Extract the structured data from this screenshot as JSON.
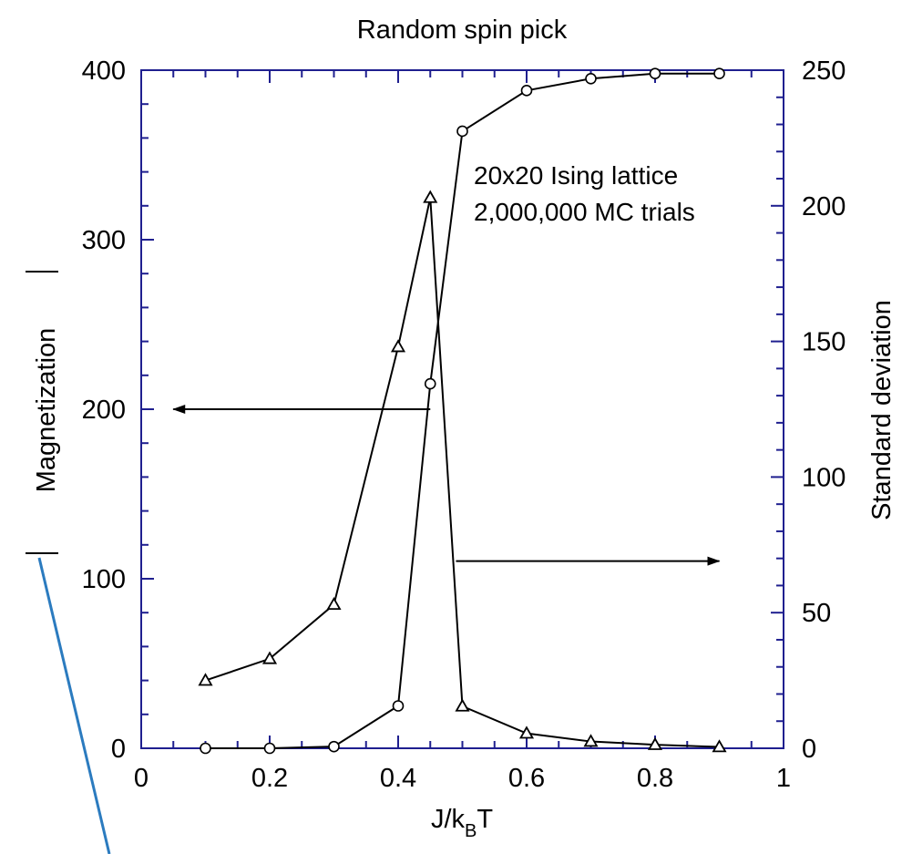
{
  "colors": {
    "frame": "#1f1f8f",
    "data": "#000000",
    "stray_line": "#2b7bbf"
  },
  "chart_data": {
    "type": "line",
    "title": "Random spin pick",
    "xlabel": "J/k",
    "xlabel_sub": "B",
    "xlabel_tail": "T",
    "ylabel_left": "Magnetization",
    "ylabel_right": "Standard deviation",
    "xlim": [
      0,
      1
    ],
    "ylim_left": [
      0,
      400
    ],
    "ylim_right": [
      0,
      250
    ],
    "x_ticks": [
      "0",
      "0.2",
      "0.4",
      "0.6",
      "0.8",
      "1"
    ],
    "y_left_ticks": [
      "0",
      "100",
      "200",
      "300",
      "400"
    ],
    "y_right_ticks": [
      "0",
      "50",
      "100",
      "150",
      "200",
      "250"
    ],
    "grid": false,
    "annotation_lines": [
      "20x20 Ising lattice",
      "2,000,000 MC trials"
    ],
    "series": [
      {
        "axis": "left",
        "marker": "circle",
        "x": [
          0.1,
          0.2,
          0.3,
          0.4,
          0.45,
          0.5,
          0.6,
          0.7,
          0.8,
          0.9
        ],
        "values": [
          0,
          0,
          1,
          25,
          215,
          364,
          388,
          395,
          398,
          398
        ]
      },
      {
        "axis": "right",
        "marker": "triangle",
        "x": [
          0.1,
          0.2,
          0.3,
          0.4,
          0.45,
          0.5,
          0.6,
          0.7,
          0.8,
          0.9
        ],
        "values": [
          25,
          33,
          53,
          148,
          203,
          15.5,
          5.5,
          2.5,
          1.3,
          0.5
        ]
      }
    ],
    "axis_arrows": [
      {
        "points_to": "left",
        "from": [
          0.45,
          200
        ],
        "to": [
          0.05,
          200
        ]
      },
      {
        "points_to": "right",
        "from": [
          0.49,
          69
        ],
        "to": [
          0.9,
          69
        ]
      }
    ]
  }
}
